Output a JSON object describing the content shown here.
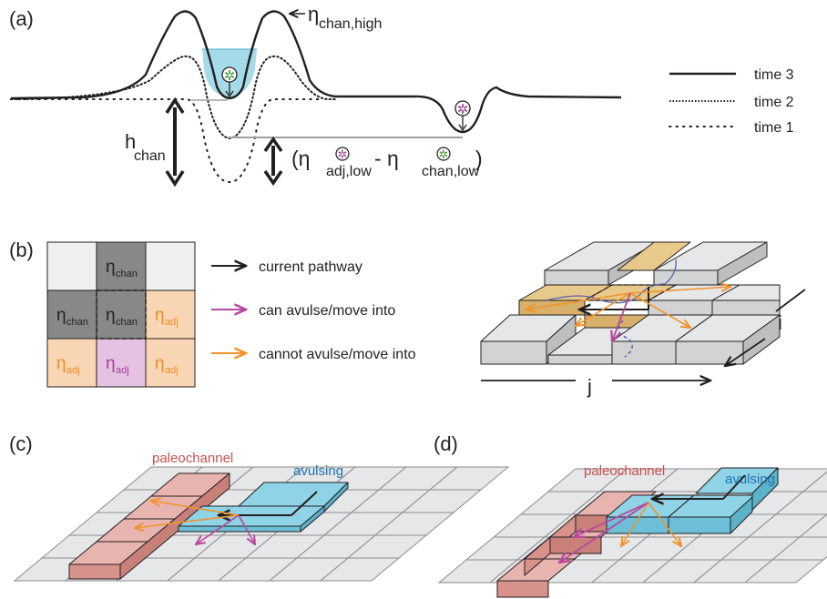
{
  "panel_a": {
    "label": "(a)",
    "eta_high_main": "η",
    "eta_high_sub": "chan,high",
    "h_main": "h",
    "h_sub": "chan",
    "formula_open": "(η",
    "formula_sub1": "adj,low",
    "formula_mid": " - η",
    "formula_sub2": "chan,low",
    "formula_close": ")",
    "legend": [
      {
        "label": "time 3",
        "style": "solid"
      },
      {
        "label": "time 2",
        "style": "dense-dotted"
      },
      {
        "label": "time 1",
        "style": "sparse-dotted"
      }
    ],
    "marker_colors": {
      "adjacent": "#a0409c",
      "channel": "#4a9c3a"
    }
  },
  "panel_b": {
    "label": "(b)",
    "grid": [
      [
        {
          "main": "",
          "sub": "",
          "fill": "#eeeff0"
        },
        {
          "main": "η",
          "sub": "chan",
          "fill": "#888888"
        },
        {
          "main": "",
          "sub": "",
          "fill": "#eeeff0"
        }
      ],
      [
        {
          "main": "η",
          "sub": "chan",
          "fill": "#888888"
        },
        {
          "main": "η",
          "sub": "chan",
          "fill": "#888888"
        },
        {
          "main": "η",
          "sub": "adj",
          "fill": "#f8d6b4"
        }
      ],
      [
        {
          "main": "η",
          "sub": "adj",
          "fill": "#f8d6b4"
        },
        {
          "main": "η",
          "sub": "adj",
          "fill": "#e6c2e2"
        },
        {
          "main": "η",
          "sub": "adj",
          "fill": "#f8d6b4"
        }
      ]
    ],
    "legend": [
      {
        "label": "current pathway",
        "color": "#231f20"
      },
      {
        "label": "can avulse/move into",
        "color": "#b8489e"
      },
      {
        "label": "cannot avulse/move into",
        "color": "#f0932b"
      }
    ],
    "axis_i": "i",
    "axis_j": "j"
  },
  "panel_c": {
    "label": "(c)",
    "paleochannel": "paleochannel",
    "avulsing": "avulsing"
  },
  "panel_d": {
    "label": "(d)",
    "paleochannel": "paleochannel",
    "avulsing": "avulsing"
  },
  "colors": {
    "water": "#a5dbe9",
    "avulsing_blue": "#1f73b4",
    "paleochannel_red": "#c8504e",
    "paleo_fill": "#e8b4b0",
    "channel_fill": "#8ed3e6",
    "adj_text": "#ee8a1f",
    "purple_text": "#a0409c",
    "floor_tile": "#e6e7e8"
  }
}
